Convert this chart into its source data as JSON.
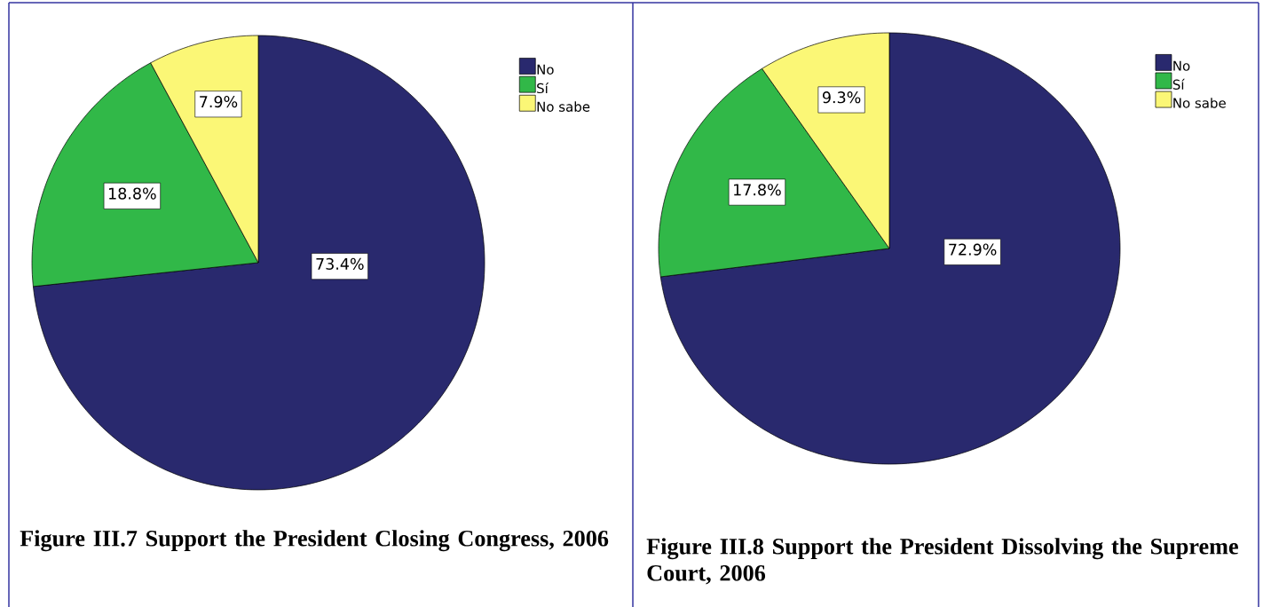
{
  "chart_data": [
    {
      "type": "pie",
      "title": "Figure III.7 Support the President Closing Congress, 2006",
      "categories": [
        "No",
        "Sí",
        "No sabe"
      ],
      "values": [
        73.4,
        18.8,
        7.9
      ],
      "value_labels": [
        "73.4%",
        "18.8%",
        "7.9%"
      ],
      "colors": [
        "#29296e",
        "#31b848",
        "#fbf776"
      ],
      "legend": "top right"
    },
    {
      "type": "pie",
      "title": "Figure III.8 Support the President Dissolving the Supreme Court, 2006",
      "categories": [
        "No",
        "Sí",
        "No sabe"
      ],
      "values": [
        72.9,
        17.8,
        9.3
      ],
      "value_labels": [
        "72.9%",
        "17.8%",
        "9.3%"
      ],
      "colors": [
        "#29296e",
        "#31b848",
        "#fbf776"
      ],
      "legend": "top right"
    }
  ]
}
